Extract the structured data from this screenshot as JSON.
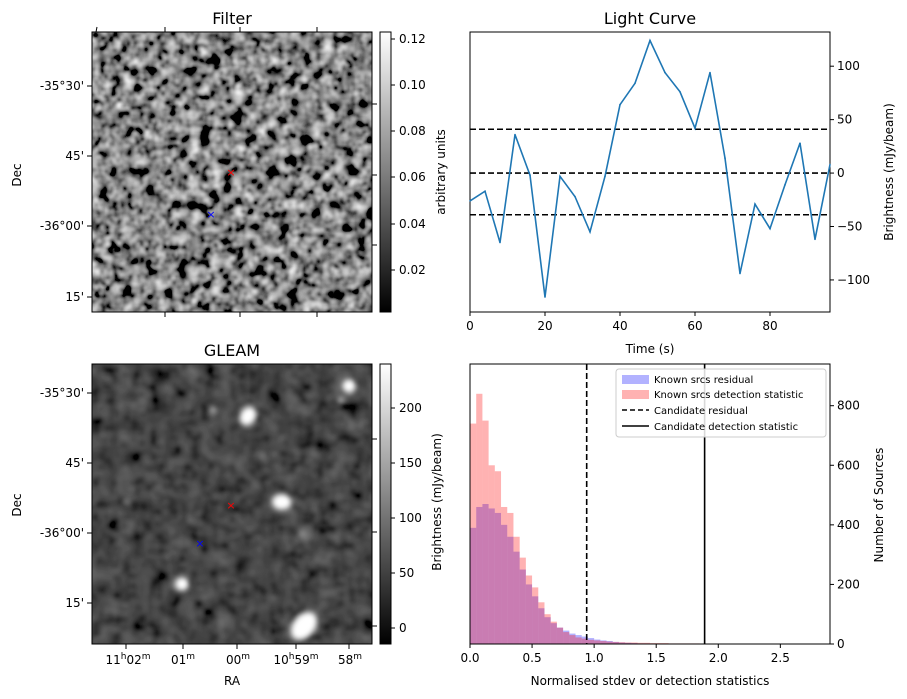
{
  "panels": {
    "filter": {
      "title": "Filter",
      "ylabel": "Dec",
      "colorbar_label": "arbitrary units",
      "dec_ticks": [
        "-35°30'",
        "45'",
        "-36°00'",
        "15'"
      ],
      "colorbar_ticks": [
        "0.02",
        "0.04",
        "0.06",
        "0.08",
        "0.10",
        "0.12"
      ]
    },
    "gleam": {
      "title": "GLEAM",
      "ylabel": "Dec",
      "xlabel": "RA",
      "colorbar_label": "Brightness (mJy/beam)",
      "dec_ticks": [
        "-35°30'",
        "45'",
        "-36°00'",
        "15'"
      ],
      "ra_ticks": [
        {
          "main": "11",
          "sup1": "h",
          "mid": "02",
          "sup2": "m"
        },
        {
          "main": "01",
          "sup1": "",
          "mid": "",
          "sup2": "m"
        },
        {
          "main": "00",
          "sup1": "",
          "mid": "",
          "sup2": "m"
        },
        {
          "main": "10",
          "sup1": "h",
          "mid": "59",
          "sup2": "m"
        },
        {
          "main": "58",
          "sup1": "",
          "mid": "",
          "sup2": "m"
        }
      ],
      "colorbar_ticks": [
        "0",
        "50",
        "100",
        "150",
        "200"
      ]
    }
  },
  "chart_data": [
    {
      "type": "line",
      "title": "Light Curve",
      "xlabel": "Time (s)",
      "ylabel": "Brightness (mJy/beam)",
      "xlim": [
        0,
        96
      ],
      "ylim": [
        -130,
        132
      ],
      "xticks": [
        0,
        20,
        40,
        60,
        80
      ],
      "yticks": [
        -100,
        -50,
        0,
        50,
        100
      ],
      "color": "#1f77b4",
      "x": [
        0,
        4,
        8,
        12,
        16,
        20,
        24,
        28,
        32,
        36,
        40,
        44,
        48,
        52,
        56,
        60,
        64,
        68,
        72,
        76,
        80,
        84,
        88,
        92,
        96
      ],
      "y": [
        -26,
        -17,
        -65,
        36,
        -2,
        -116,
        -3,
        -22,
        -55,
        -3,
        64,
        84,
        124,
        94,
        76,
        42,
        94,
        14,
        -94,
        -29,
        -52,
        -11,
        28,
        -62,
        8
      ],
      "hlines": [
        {
          "y": 41,
          "style": "dashed"
        },
        {
          "y": 0,
          "style": "dashed"
        },
        {
          "y": -39,
          "style": "dashed"
        }
      ]
    },
    {
      "type": "histogram",
      "xlabel": "Normalised stdev or detection statistics",
      "ylabel": "Number of Sources",
      "xlim": [
        0,
        2.9
      ],
      "ylim": [
        0,
        940
      ],
      "xticks": [
        "0.0",
        "0.5",
        "1.0",
        "1.5",
        "2.0",
        "2.5"
      ],
      "yticks": [
        0,
        200,
        400,
        600,
        800
      ],
      "bin_width": 0.05,
      "series": [
        {
          "name": "Known srcs residual",
          "color": "#0000ff",
          "values": [
            390,
            460,
            470,
            455,
            440,
            400,
            360,
            310,
            250,
            200,
            160,
            120,
            90,
            70,
            55,
            45,
            35,
            30,
            25,
            20,
            15,
            12,
            10,
            7,
            5,
            4,
            3,
            2,
            2,
            1,
            1,
            1,
            0,
            0,
            0,
            0,
            0,
            0,
            0,
            0,
            0,
            0,
            0,
            0,
            0,
            0,
            0,
            0,
            0,
            0,
            0,
            0,
            0,
            0,
            0,
            0,
            0,
            0
          ]
        },
        {
          "name": "Known srcs detection statistic",
          "color": "#ff0000",
          "values": [
            740,
            840,
            750,
            600,
            580,
            460,
            440,
            360,
            290,
            230,
            190,
            140,
            100,
            75,
            55,
            40,
            30,
            22,
            18,
            14,
            12,
            10,
            8,
            7,
            6,
            5,
            5,
            4,
            4,
            3,
            3,
            3,
            2,
            2,
            2,
            2,
            2,
            1,
            1,
            1,
            1,
            1,
            1,
            1,
            1,
            1,
            1,
            1,
            1,
            1,
            1,
            1,
            1,
            1,
            1,
            1,
            1,
            1
          ]
        }
      ],
      "vlines": [
        {
          "name": "Candidate residual",
          "x": 0.94,
          "style": "dashed"
        },
        {
          "name": "Candidate detection statistic",
          "x": 1.89,
          "style": "solid"
        }
      ]
    }
  ]
}
